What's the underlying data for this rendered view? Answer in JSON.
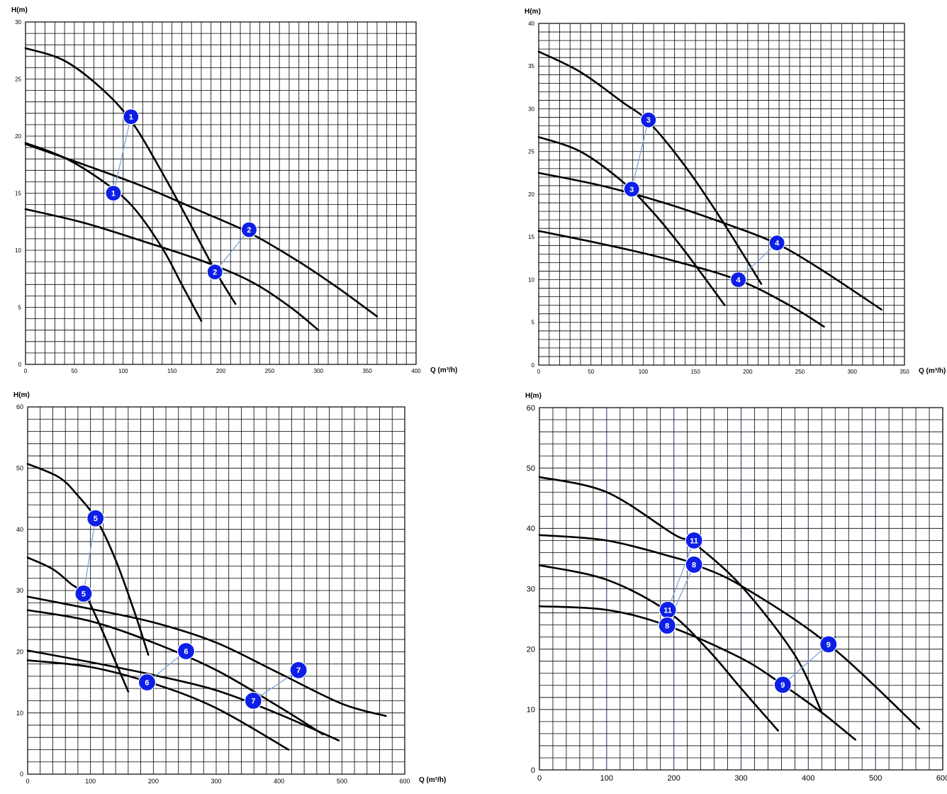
{
  "chart_data": [
    {
      "type": "line",
      "ylabel": "H(m)",
      "xlabel": "Q (m³/h)",
      "xlim": [
        0,
        400
      ],
      "ylim": [
        0,
        30
      ],
      "xticks": [
        0,
        50,
        100,
        150,
        200,
        250,
        300,
        350,
        400
      ],
      "yticks": [
        0,
        5,
        10,
        15,
        20,
        25,
        30
      ],
      "minor_x": 10,
      "minor_y": 1,
      "major_grid_color": "",
      "tick_font": 8,
      "marker_r": 11,
      "series": [
        {
          "x": [
            0,
            40,
            80,
            110,
            140,
            170,
            195,
            215
          ],
          "y": [
            27.7,
            26.6,
            24.0,
            21.1,
            16.8,
            12.1,
            8.1,
            5.3
          ]
        },
        {
          "x": [
            0,
            40,
            80,
            110,
            140,
            160,
            180
          ],
          "y": [
            19.4,
            18.1,
            16.0,
            13.8,
            10.2,
            7.0,
            3.8
          ]
        },
        {
          "x": [
            0,
            60,
            120,
            180,
            230,
            280,
            320,
            360
          ],
          "y": [
            19.3,
            17.5,
            15.6,
            13.4,
            11.5,
            9.0,
            6.7,
            4.2
          ]
        },
        {
          "x": [
            0,
            60,
            120,
            180,
            230,
            270,
            300
          ],
          "y": [
            13.6,
            12.4,
            10.8,
            9.1,
            7.3,
            5.1,
            3.0
          ]
        }
      ],
      "markers": [
        {
          "label": "1",
          "x": 108,
          "y": 21.7
        },
        {
          "label": "1",
          "x": 90,
          "y": 15.0
        },
        {
          "label": "2",
          "x": 229,
          "y": 11.8
        },
        {
          "label": "2",
          "x": 194,
          "y": 8.1
        }
      ],
      "links": [
        [
          0,
          1
        ],
        [
          2,
          3
        ]
      ]
    },
    {
      "type": "line",
      "ylabel": "H(m)",
      "xlabel": "Q (m³/h)",
      "xlim": [
        0,
        350
      ],
      "ylim": [
        0,
        40
      ],
      "xticks": [
        0,
        50,
        100,
        150,
        200,
        250,
        300,
        350
      ],
      "yticks": [
        0,
        5,
        10,
        15,
        20,
        25,
        30,
        35,
        40
      ],
      "minor_x": 10,
      "minor_y": 1,
      "major_grid_color": "",
      "tick_font": 8,
      "marker_r": 11,
      "series": [
        {
          "x": [
            0,
            40,
            80,
            105,
            140,
            175,
            213
          ],
          "y": [
            36.7,
            34.3,
            30.8,
            28.5,
            23.3,
            17.0,
            9.5
          ]
        },
        {
          "x": [
            0,
            40,
            80,
            110,
            140,
            178
          ],
          "y": [
            26.7,
            25.0,
            21.5,
            17.8,
            13.3,
            7.0
          ]
        },
        {
          "x": [
            0,
            60,
            120,
            180,
            228,
            270,
            328
          ],
          "y": [
            22.5,
            21.0,
            19.0,
            16.5,
            14.2,
            11.2,
            6.5
          ]
        },
        {
          "x": [
            0,
            60,
            120,
            190,
            240,
            273
          ],
          "y": [
            15.7,
            14.2,
            12.5,
            10.0,
            7.0,
            4.5
          ]
        }
      ],
      "markers": [
        {
          "label": "3",
          "x": 105,
          "y": 28.7
        },
        {
          "label": "3",
          "x": 89,
          "y": 20.6
        },
        {
          "label": "4",
          "x": 228,
          "y": 14.3
        },
        {
          "label": "4",
          "x": 191,
          "y": 10.0
        }
      ],
      "links": [
        [
          0,
          1
        ],
        [
          2,
          3
        ]
      ]
    },
    {
      "type": "line",
      "ylabel": "H(m)",
      "xlabel": "Q (m³/h)",
      "xlim": [
        0,
        600
      ],
      "ylim": [
        0,
        60
      ],
      "xticks": [
        0,
        100,
        200,
        300,
        400,
        500,
        600
      ],
      "yticks": [
        0,
        10,
        20,
        30,
        40,
        50,
        60
      ],
      "minor_x": 20,
      "minor_y": 2,
      "major_grid_color": "",
      "tick_font": 9,
      "marker_r": 12,
      "series": [
        {
          "x": [
            0,
            50,
            80,
            110,
            140,
            170,
            192
          ],
          "y": [
            50.7,
            48.5,
            45.5,
            41.5,
            35.0,
            26.5,
            19.5
          ]
        },
        {
          "x": [
            0,
            40,
            70,
            90,
            110,
            135,
            160
          ],
          "y": [
            35.4,
            33.5,
            31.0,
            29.5,
            25.5,
            19.5,
            13.5
          ]
        },
        {
          "x": [
            0,
            100,
            200,
            300,
            400,
            500,
            570
          ],
          "y": [
            29.0,
            27.0,
            24.8,
            21.5,
            16.5,
            11.5,
            9.5
          ]
        },
        {
          "x": [
            0,
            100,
            200,
            300,
            400,
            470
          ],
          "y": [
            26.8,
            25.0,
            21.5,
            17.0,
            11.0,
            6.5
          ]
        },
        {
          "x": [
            0,
            100,
            200,
            300,
            400,
            495
          ],
          "y": [
            20.2,
            18.3,
            16.2,
            13.7,
            9.8,
            5.5
          ]
        },
        {
          "x": [
            0,
            100,
            200,
            300,
            415
          ],
          "y": [
            18.6,
            17.5,
            14.8,
            10.8,
            4.0
          ]
        }
      ],
      "markers": [
        {
          "label": "5",
          "x": 108,
          "y": 41.8
        },
        {
          "label": "5",
          "x": 89,
          "y": 29.5
        },
        {
          "label": "6",
          "x": 252,
          "y": 20.1
        },
        {
          "label": "6",
          "x": 190,
          "y": 15.0
        },
        {
          "label": "7",
          "x": 431,
          "y": 17.0
        },
        {
          "label": "7",
          "x": 359,
          "y": 12.0
        }
      ],
      "links": [
        [
          0,
          1
        ],
        [
          2,
          3
        ],
        [
          4,
          5
        ]
      ]
    },
    {
      "type": "line",
      "ylabel": "H(m)",
      "xlabel": "",
      "xlim": [
        0,
        600
      ],
      "ylim": [
        0,
        60
      ],
      "xticks": [
        0,
        100,
        200,
        300,
        400,
        500,
        600
      ],
      "yticks": [
        0,
        10,
        20,
        30,
        40,
        50,
        60
      ],
      "minor_x": 20,
      "minor_y": 2,
      "major_grid_color": "#2f3f6b",
      "tick_font": 11,
      "marker_r": 12,
      "series": [
        {
          "x": [
            0,
            100,
            200,
            230,
            300,
            380,
            420
          ],
          "y": [
            48.5,
            46.0,
            39.0,
            37.5,
            30.5,
            19.0,
            9.5
          ]
        },
        {
          "x": [
            0,
            100,
            200,
            231,
            300,
            430,
            565
          ],
          "y": [
            38.9,
            38.0,
            35.2,
            34.0,
            30.5,
            20.8,
            6.8
          ]
        },
        {
          "x": [
            0,
            100,
            190,
            250,
            300,
            355
          ],
          "y": [
            33.9,
            31.5,
            26.3,
            20.0,
            13.5,
            6.5
          ]
        },
        {
          "x": [
            0,
            100,
            190,
            300,
            362,
            420,
            470
          ],
          "y": [
            27.1,
            26.5,
            23.9,
            18.5,
            14.1,
            9.5,
            5.0
          ]
        }
      ],
      "markers": [
        {
          "label": "11",
          "x": 230,
          "y": 38.0
        },
        {
          "label": "11",
          "x": 191,
          "y": 26.5
        },
        {
          "label": "8",
          "x": 230,
          "y": 34.0
        },
        {
          "label": "8",
          "x": 190,
          "y": 23.9
        },
        {
          "label": "9",
          "x": 430,
          "y": 20.8
        },
        {
          "label": "9",
          "x": 362,
          "y": 14.1
        }
      ],
      "links": [
        [
          0,
          1
        ],
        [
          2,
          3
        ],
        [
          4,
          5
        ]
      ]
    }
  ]
}
